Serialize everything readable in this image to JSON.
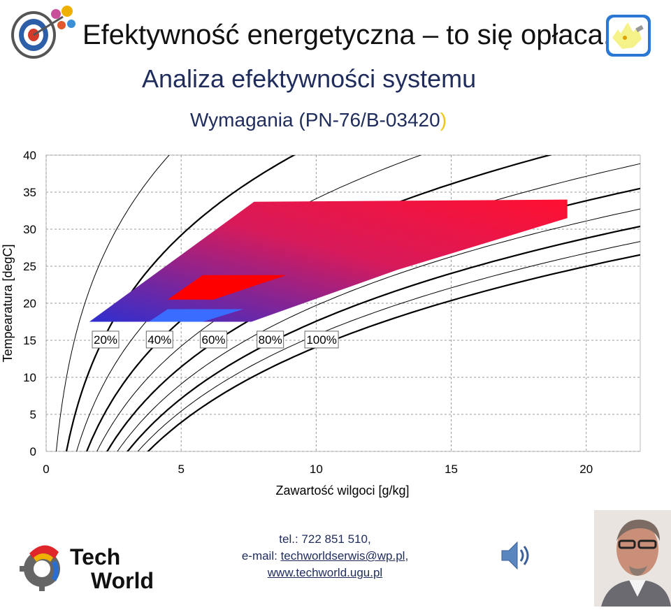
{
  "header": {
    "title": "Efektywność energetyczna – to się opłaca.",
    "subtitle": "Analiza efektywności systemu",
    "requirements_text": "Wymagania (PN-76/B-03420",
    "requirements_close": ")"
  },
  "icons": {
    "target_logo": "target-arrow-icon",
    "bulb_logo": "lightbulb-icon",
    "speaker": "speaker-icon",
    "photo": "person-photo"
  },
  "brand": {
    "line1": "Tech",
    "line2": "World"
  },
  "contact": {
    "phone": "tel.: 722 851 510,",
    "email_prefix": "e-mail: ",
    "email": "techworldserwis@wp.pl",
    "email_suffix": ",",
    "website": "www.techworld.ugu.pl"
  },
  "colors": {
    "zone_blue": "#2f2fd0",
    "zone_red": "#ff1030",
    "inner_blue": "#3a6cff",
    "inner_red": "#ff0000"
  },
  "chart_data": {
    "type": "scatter",
    "xlabel": "Zawartość wilgoci [g/kg]",
    "ylabel": "Tempearatura [degC]",
    "xlim": [
      0,
      22
    ],
    "ylim": [
      0,
      40
    ],
    "x_ticks": [
      0,
      5,
      10,
      15,
      20
    ],
    "y_ticks": [
      0,
      5,
      10,
      15,
      20,
      25,
      30,
      35,
      40
    ],
    "grid": true,
    "rh_curve_levels": [
      10,
      20,
      30,
      40,
      50,
      60,
      70,
      80,
      90,
      100
    ],
    "rh_labels": [
      "20%",
      "40%",
      "60%",
      "80%",
      "100%"
    ],
    "zones": [
      {
        "name": "comfort-zone",
        "points": [
          [
            1.6,
            17.5
          ],
          [
            7.7,
            33.7
          ],
          [
            19.3,
            34
          ],
          [
            19.3,
            31.5
          ],
          [
            13,
            24.5
          ],
          [
            7.6,
            17.5
          ]
        ]
      },
      {
        "name": "inner-warm-zone",
        "points": [
          [
            4.5,
            20.5
          ],
          [
            5.8,
            23.8
          ],
          [
            8.9,
            23.8
          ],
          [
            6.2,
            20.5
          ]
        ]
      },
      {
        "name": "inner-cool-zone",
        "points": [
          [
            3.8,
            17.5
          ],
          [
            4.5,
            19.2
          ],
          [
            7.3,
            19.2
          ],
          [
            5.8,
            17.5
          ]
        ]
      }
    ]
  }
}
